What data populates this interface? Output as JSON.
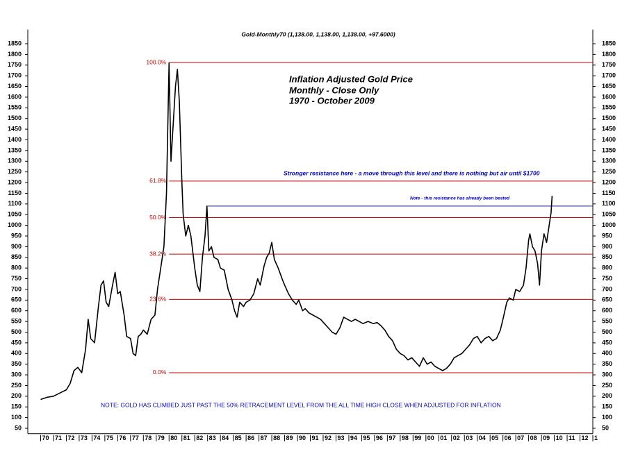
{
  "chart_data": {
    "type": "line",
    "title": "Gold-Monthly70 (1,138.00, 1,138.00, 1,138.00, +97.6000)",
    "heading": [
      "Inflation Adjusted Gold Price",
      "Monthly - Close Only",
      "1970 - October 2009"
    ],
    "notes": {
      "resistance": "Stronger resistance here - a move through this level and there is nothing but air until $1700",
      "bested": "Note - this resistance has already been bested",
      "footer": "NOTE: GOLD HAS CLIMBED JUST PAST THE 50% RETRACEMENT LEVEL FROM THE ALL TIME HIGH CLOSE WHEN ADJUSTED FOR INFLATION"
    },
    "color": "#000000",
    "x": [
      1970.0,
      1970.5,
      1971.0,
      1971.5,
      1972.0,
      1972.3,
      1972.6,
      1972.9,
      1973.2,
      1973.5,
      1973.7,
      1973.9,
      1974.2,
      1974.5,
      1974.7,
      1974.9,
      1975.1,
      1975.3,
      1975.6,
      1975.8,
      1976.0,
      1976.2,
      1976.5,
      1976.7,
      1977.0,
      1977.2,
      1977.4,
      1977.6,
      1977.8,
      1978.0,
      1978.3,
      1978.6,
      1978.9,
      1979.1,
      1979.3,
      1979.6,
      1979.8,
      1980.0,
      1980.15,
      1980.3,
      1980.5,
      1980.65,
      1980.8,
      1981.0,
      1981.1,
      1981.3,
      1981.5,
      1981.7,
      1982.0,
      1982.2,
      1982.4,
      1982.6,
      1982.8,
      1982.95,
      1983.1,
      1983.3,
      1983.5,
      1983.8,
      1984.0,
      1984.3,
      1984.6,
      1984.9,
      1985.1,
      1985.3,
      1985.5,
      1985.8,
      1986.0,
      1986.3,
      1986.6,
      1986.9,
      1987.1,
      1987.4,
      1987.6,
      1987.8,
      1988.0,
      1988.2,
      1988.5,
      1988.8,
      1989.0,
      1989.3,
      1989.6,
      1989.9,
      1990.1,
      1990.4,
      1990.6,
      1990.9,
      1991.2,
      1991.5,
      1991.8,
      1992.1,
      1992.4,
      1992.7,
      1993.0,
      1993.3,
      1993.6,
      1993.9,
      1994.2,
      1994.5,
      1994.8,
      1995.1,
      1995.5,
      1995.9,
      1996.2,
      1996.5,
      1996.8,
      1997.1,
      1997.4,
      1997.7,
      1998.0,
      1998.3,
      1998.6,
      1998.9,
      1999.2,
      1999.5,
      1999.8,
      2000.1,
      2000.4,
      2000.7,
      2001.0,
      2001.3,
      2001.6,
      2001.9,
      2002.2,
      2002.5,
      2002.8,
      2003.1,
      2003.4,
      2003.7,
      2004.0,
      2004.3,
      2004.6,
      2004.9,
      2005.2,
      2005.5,
      2005.8,
      2006.0,
      2006.3,
      2006.5,
      2006.8,
      2007.0,
      2007.3,
      2007.6,
      2007.8,
      2008.0,
      2008.1,
      2008.3,
      2008.5,
      2008.7,
      2008.85,
      2009.0,
      2009.2,
      2009.4,
      2009.6,
      2009.75,
      2009.83
    ],
    "values": [
      185,
      195,
      200,
      215,
      230,
      260,
      320,
      335,
      310,
      420,
      560,
      470,
      450,
      620,
      720,
      740,
      640,
      620,
      720,
      780,
      680,
      690,
      580,
      480,
      470,
      400,
      390,
      480,
      490,
      510,
      490,
      560,
      580,
      700,
      780,
      900,
      1150,
      1760,
      1300,
      1450,
      1650,
      1730,
      1580,
      1200,
      1050,
      950,
      1000,
      950,
      800,
      720,
      690,
      850,
      950,
      1090,
      880,
      900,
      850,
      840,
      800,
      790,
      700,
      650,
      600,
      570,
      640,
      620,
      640,
      650,
      680,
      750,
      720,
      810,
      850,
      870,
      920,
      840,
      800,
      750,
      720,
      680,
      650,
      630,
      650,
      600,
      610,
      590,
      580,
      570,
      560,
      540,
      520,
      500,
      490,
      520,
      570,
      560,
      550,
      560,
      550,
      540,
      550,
      540,
      545,
      530,
      510,
      480,
      460,
      420,
      400,
      390,
      370,
      380,
      360,
      340,
      380,
      350,
      360,
      340,
      330,
      320,
      330,
      350,
      380,
      390,
      400,
      420,
      440,
      470,
      480,
      450,
      470,
      480,
      460,
      470,
      510,
      560,
      640,
      660,
      650,
      700,
      690,
      720,
      800,
      930,
      960,
      900,
      880,
      820,
      720,
      880,
      960,
      920,
      1000,
      1060,
      1138
    ],
    "xlim": [
      1969,
      2013
    ],
    "ylim": [
      25,
      1900
    ],
    "yticks": [
      50,
      100,
      150,
      200,
      250,
      300,
      350,
      400,
      450,
      500,
      550,
      600,
      650,
      700,
      750,
      800,
      850,
      900,
      950,
      1000,
      1050,
      1100,
      1150,
      1200,
      1250,
      1300,
      1350,
      1400,
      1450,
      1500,
      1550,
      1600,
      1650,
      1700,
      1750,
      1800,
      1850
    ],
    "xticks": [
      {
        "value": 1970,
        "label": "70"
      },
      {
        "value": 1971,
        "label": "71"
      },
      {
        "value": 1972,
        "label": "72"
      },
      {
        "value": 1973,
        "label": "73"
      },
      {
        "value": 1974,
        "label": "74"
      },
      {
        "value": 1975,
        "label": "75"
      },
      {
        "value": 1976,
        "label": "76"
      },
      {
        "value": 1977,
        "label": "77"
      },
      {
        "value": 1978,
        "label": "78"
      },
      {
        "value": 1979,
        "label": "79"
      },
      {
        "value": 1980,
        "label": "80"
      },
      {
        "value": 1981,
        "label": "81"
      },
      {
        "value": 1982,
        "label": "82"
      },
      {
        "value": 1983,
        "label": "83"
      },
      {
        "value": 1984,
        "label": "84"
      },
      {
        "value": 1985,
        "label": "85"
      },
      {
        "value": 1986,
        "label": "86"
      },
      {
        "value": 1987,
        "label": "87"
      },
      {
        "value": 1988,
        "label": "88"
      },
      {
        "value": 1989,
        "label": "89"
      },
      {
        "value": 1990,
        "label": "90"
      },
      {
        "value": 1991,
        "label": "91"
      },
      {
        "value": 1992,
        "label": "92"
      },
      {
        "value": 1993,
        "label": "93"
      },
      {
        "value": 1994,
        "label": "94"
      },
      {
        "value": 1995,
        "label": "95"
      },
      {
        "value": 1996,
        "label": "96"
      },
      {
        "value": 1997,
        "label": "97"
      },
      {
        "value": 1998,
        "label": "98"
      },
      {
        "value": 1999,
        "label": "99"
      },
      {
        "value": 2000,
        "label": "00"
      },
      {
        "value": 2001,
        "label": "01"
      },
      {
        "value": 2002,
        "label": "02"
      },
      {
        "value": 2003,
        "label": "03"
      },
      {
        "value": 2004,
        "label": "04"
      },
      {
        "value": 2005,
        "label": "05"
      },
      {
        "value": 2006,
        "label": "06"
      },
      {
        "value": 2007,
        "label": "07"
      },
      {
        "value": 2008,
        "label": "08"
      },
      {
        "value": 2009,
        "label": "09"
      },
      {
        "value": 2010,
        "label": "10"
      },
      {
        "value": 2011,
        "label": "11"
      },
      {
        "value": 2012,
        "label": "12"
      },
      {
        "value": 2013,
        "label": "1"
      }
    ],
    "hlines": [
      {
        "value": 1762,
        "label": "100.0%",
        "color": "#cc0000",
        "x_start": 1980
      },
      {
        "value": 1207,
        "label": "61.8%",
        "color": "#cc0000",
        "x_start": 1980
      },
      {
        "value": 1036,
        "label": "50.0%",
        "color": "#cc0000",
        "x_start": 1980
      },
      {
        "value": 865,
        "label": "38.2%",
        "color": "#cc0000",
        "x_start": 1980
      },
      {
        "value": 653,
        "label": "23.6%",
        "color": "#cc0000",
        "x_start": 1980
      },
      {
        "value": 310,
        "label": "0.0%",
        "color": "#cc0000",
        "x_start": 1980
      },
      {
        "value": 1090,
        "color": "#1a1a8c",
        "x_start": 1983
      }
    ]
  }
}
